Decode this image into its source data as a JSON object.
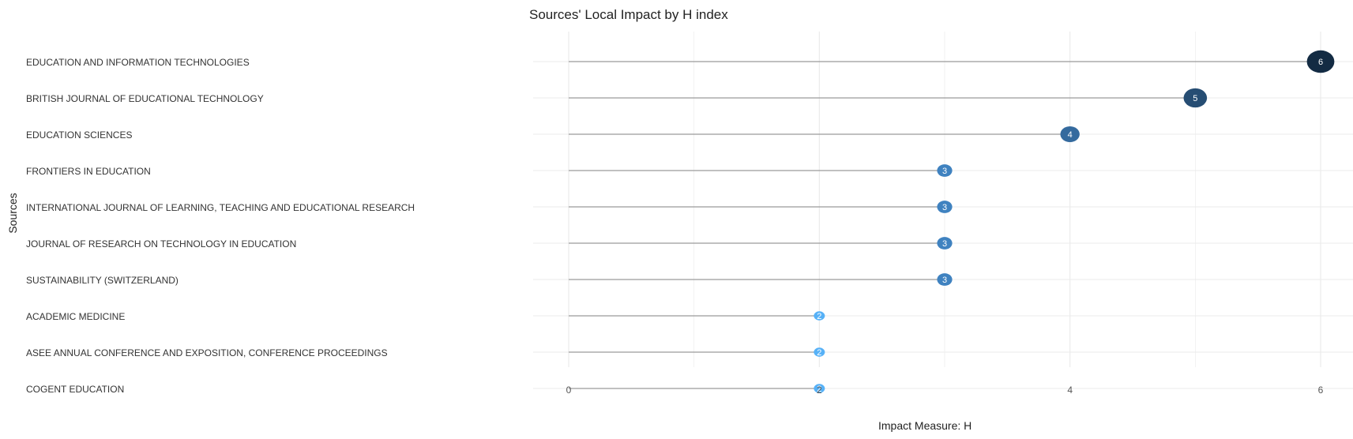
{
  "chart_data": {
    "type": "lollipop",
    "title": "Sources' Local Impact by H index",
    "xlabel": "Impact Measure: H",
    "ylabel": "Sources",
    "xlim": [
      0,
      6.3
    ],
    "xticks": [
      0,
      2,
      4,
      6
    ],
    "grid": true,
    "legend": "none",
    "categories": [
      "EDUCATION AND INFORMATION TECHNOLOGIES",
      "BRITISH JOURNAL OF EDUCATIONAL TECHNOLOGY",
      "EDUCATION SCIENCES",
      "FRONTIERS IN EDUCATION",
      "INTERNATIONAL JOURNAL OF LEARNING, TEACHING AND EDUCATIONAL RESEARCH",
      "JOURNAL OF RESEARCH ON TECHNOLOGY IN EDUCATION",
      "SUSTAINABILITY (SWITZERLAND)",
      "ACADEMIC MEDICINE",
      "ASEE ANNUAL CONFERENCE AND EXPOSITION, CONFERENCE PROCEEDINGS",
      "COGENT EDUCATION"
    ],
    "values": [
      6,
      5,
      4,
      3,
      3,
      3,
      3,
      2,
      2,
      2
    ],
    "colors": {
      "2": "#56B1F7",
      "3": "#3F82C0",
      "4": "#346A9E",
      "5": "#264D73",
      "6": "#132B43",
      "stem": "#9a9a9a",
      "grid": "#ebebeb",
      "text": "#333333"
    }
  }
}
